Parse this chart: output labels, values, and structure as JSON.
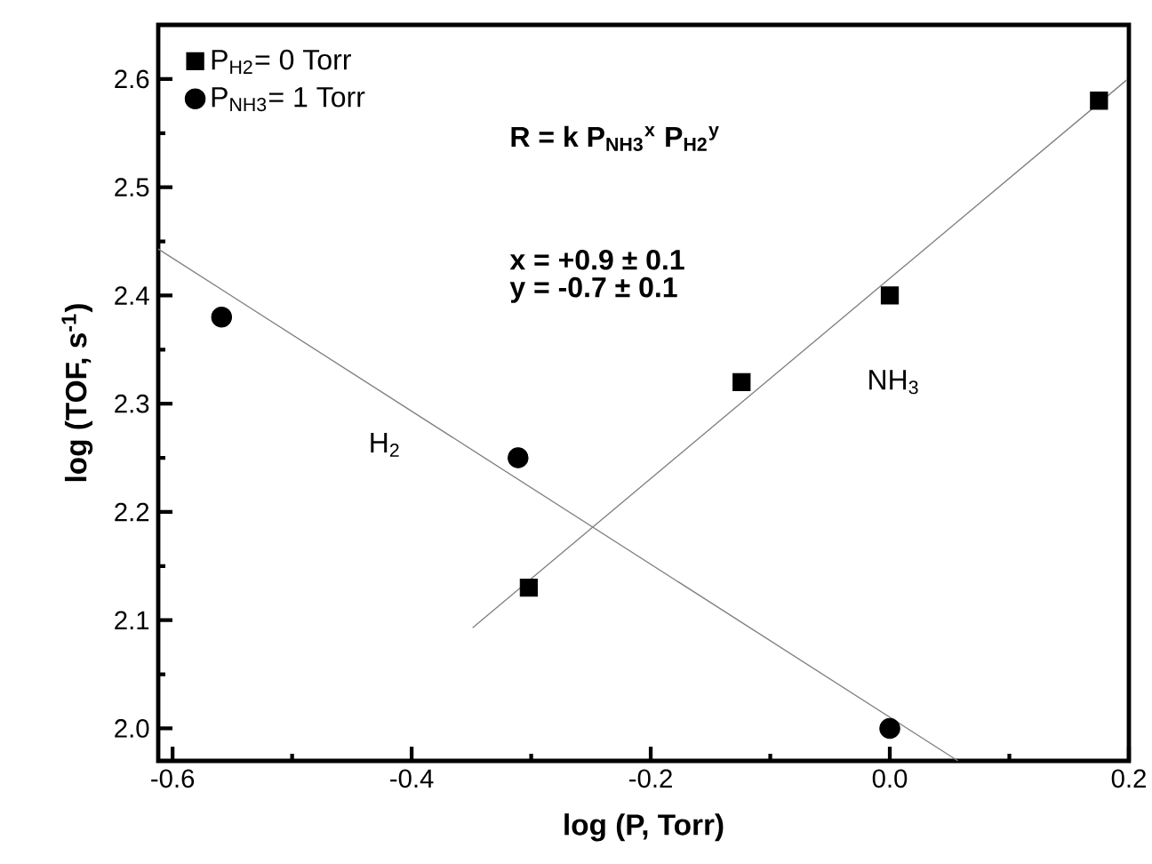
{
  "chart_data": {
    "type": "scatter",
    "xlabel": "log (P, Torr)",
    "ylabel": "log (TOF, s$^{-1}$)",
    "xlim": [
      -0.612,
      0.2
    ],
    "ylim": [
      1.97,
      2.65
    ],
    "xticks": [
      -0.6,
      -0.4,
      -0.2,
      {
        "value": 0,
        "label": "0.0"
      },
      0.2
    ],
    "yticks": [
      {
        "value": 2,
        "label": "2.0"
      },
      2.1,
      2.2,
      2.3,
      2.4,
      2.5,
      2.6
    ],
    "legend": "top left",
    "grid": false,
    "series": [
      {
        "name": "P$_{H2}$= 0 Torr",
        "marker": "square",
        "color": "#000000",
        "x": [
          -0.302,
          -0.124,
          0.0,
          0.175
        ],
        "values": [
          2.13,
          2.32,
          2.4,
          2.58
        ]
      },
      {
        "name": "P$_{NH3}$= 1 Torr",
        "marker": "circle",
        "color": "#000000",
        "x": [
          -0.559,
          -0.311,
          0.0
        ],
        "values": [
          2.38,
          2.25,
          2.0
        ]
      },
      {
        "type": "line",
        "color": "#808080",
        "x": [
          -0.349,
          0.198
        ],
        "values": [
          2.093,
          2.599
        ]
      },
      {
        "type": "line",
        "color": "#808080",
        "x": [
          -0.612,
          0.057
        ],
        "values": [
          2.443,
          1.97
        ]
      }
    ],
    "annotations": [
      "R = k P$_{NH3}$$^{x}$ P$_{H2}$$^{y}$",
      "x = +0.9 ± 0.1",
      "y = -0.7 ± 0.1",
      "NH$_{3}$",
      "H$_{2}$"
    ]
  }
}
